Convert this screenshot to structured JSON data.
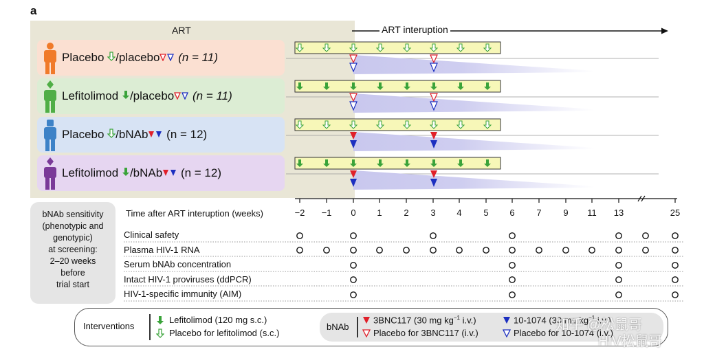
{
  "panel_letter": "a",
  "phases": {
    "art": "ART",
    "interruption": "ART interuption"
  },
  "arms": [
    {
      "name": "Placebo",
      "sep": "/placebo",
      "n": "(n = 11)",
      "person_color": "#f07a2a",
      "first": "open",
      "second": "open"
    },
    {
      "name": "Lefitolimod",
      "sep": "/placebo",
      "n": "(n = 11)",
      "person_color": "#4fae46",
      "first": "filled",
      "second": "open"
    },
    {
      "name": "Placebo",
      "sep": "/bNAb",
      "n": "(n = 12)",
      "person_color": "#3d82c7",
      "first": "open",
      "second": "filled"
    },
    {
      "name": "Lefitolimod",
      "sep": "/bNAb",
      "n": "(n = 12)",
      "person_color": "#7a3a98",
      "first": "filled",
      "second": "filled"
    }
  ],
  "screening": {
    "lines": [
      "bNAb sensitivity",
      "(phenotypic and",
      "genotypic)",
      "at screening:",
      "2–20 weeks",
      "before",
      "trial start"
    ]
  },
  "timeline": {
    "title": "Time after ART interuption (weeks)",
    "ticks": [
      "−2",
      "−1",
      "0",
      "1",
      "2",
      "3",
      "4",
      "5",
      "6",
      "7",
      "9",
      "11",
      "13",
      "25"
    ]
  },
  "assays": [
    {
      "label": "Clinical safety",
      "weeks": [
        "−2",
        "0",
        "3",
        "6",
        "13",
        "16",
        "25"
      ]
    },
    {
      "label": "Plasma HIV-1 RNA",
      "weeks": [
        "−2",
        "−1",
        "0",
        "1",
        "2",
        "3",
        "4",
        "5",
        "6",
        "7",
        "9",
        "11",
        "13",
        "16",
        "25"
      ]
    },
    {
      "label": "Serum bNAb concentration",
      "weeks": [
        "0",
        "6",
        "13",
        "25"
      ]
    },
    {
      "label": "Intact HIV-1 proviruses (ddPCR)",
      "weeks": [
        "0",
        "6",
        "13",
        "25"
      ]
    },
    {
      "label": "HIV-1-specific immunity (AIM)",
      "weeks": [
        "0",
        "6",
        "13",
        "25"
      ]
    }
  ],
  "legend": {
    "interventions": "Interventions",
    "lefitolimod": "Lefitolimod (120 mg s.c.)",
    "placebo_lefi": "Placebo for lefitolimod (s.c.)",
    "bnab": "bNAb",
    "b3bnc": "3BNC117 (30 mg kg",
    "b3bnc_sup": "−1",
    "b3bnc_end": " i.v.)",
    "b3bnc_placebo": "Placebo for 3BNC117 (i.v.)",
    "b10": "10-1074 (30 mg kg",
    "b10_sup": "−1",
    "b10_end": " i.v.)",
    "b10_placebo": "Placebo for 10-1074 (i.v.)"
  },
  "watermark": {
    "line1": "知乎 @松鼠哥",
    "line2": "HIV松鼠哥"
  },
  "colors": {
    "green": "#3aa33a",
    "red": "#e0202a",
    "blue": "#1c2fc0",
    "yellow_bar": "#f7f7b8",
    "shade": "#c9c8ee"
  }
}
